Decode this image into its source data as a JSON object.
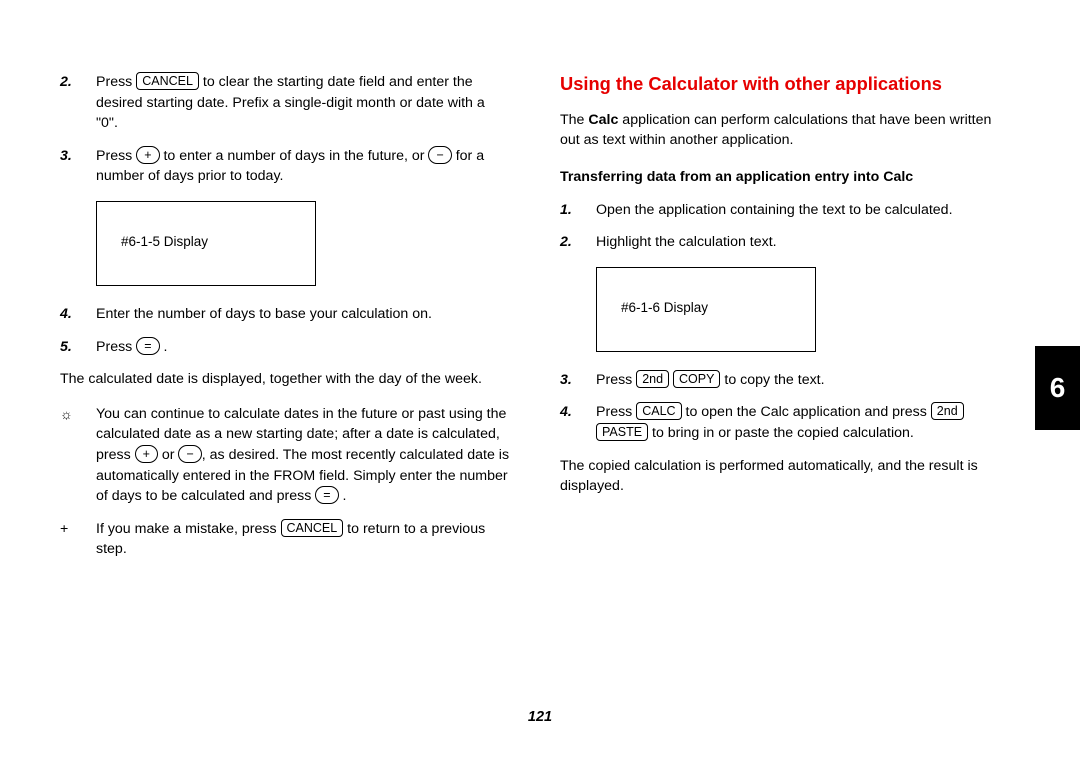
{
  "keys": {
    "cancel": "CANCEL",
    "plus": "+",
    "minus": "−",
    "equals": "=",
    "second": "2nd",
    "copy": "COPY",
    "calc": "CALC",
    "paste": "PASTE"
  },
  "left": {
    "step2": {
      "num": "2.",
      "t1": "Press ",
      "t2": " to clear the starting date field and enter the desired starting date. Prefix a single-digit month or date with a \"0\"."
    },
    "step3": {
      "num": "3.",
      "t1": "Press ",
      "t2": " to enter a number of days in the future, or ",
      "t3": " for a number of days prior to today."
    },
    "display1": "#6-1-5 Display",
    "step4": {
      "num": "4.",
      "t1": "Enter the number of days to base your calculation on."
    },
    "step5": {
      "num": "5.",
      "t1": "Press ",
      "t2": "."
    },
    "para1": "The calculated date is displayed, together with the day of the week.",
    "tip": {
      "icon": "☼",
      "t1": "You can continue to calculate dates in the future or past using the calculated date as a new starting date; after a date is calculated, press ",
      "t2": " or ",
      "t3": ", as desired. The most recently calculated date is automatically entered in the FROM field. Simply enter the number of days to be calculated and press ",
      "t4": "."
    },
    "note": {
      "icon": "+",
      "t1": "If you make a mistake, press ",
      "t2": " to return to a previous step."
    }
  },
  "right": {
    "title": "Using the Calculator with other applications",
    "intro1": "The ",
    "intro_bold": "Calc",
    "intro2": " application can perform calculations that have been written out as text within another application.",
    "sub": "Transferring data from an application entry into Calc",
    "r1": {
      "num": "1.",
      "t1": "Open the application containing the text to be calculated."
    },
    "r2": {
      "num": "2.",
      "t1": "Highlight the calculation text."
    },
    "display2": "#6-1-6 Display",
    "r3": {
      "num": "3.",
      "t1": "Press ",
      "t2": " ",
      "t3": " to copy the text."
    },
    "r4": {
      "num": "4.",
      "t1": "Press ",
      "t2": " to open the Calc application and press ",
      "t3": " ",
      "t4": " to bring in or paste the copied calculation."
    },
    "para2": "The copied calculation is performed automatically, and the result is displayed."
  },
  "chapter": "6",
  "page_number": "121"
}
